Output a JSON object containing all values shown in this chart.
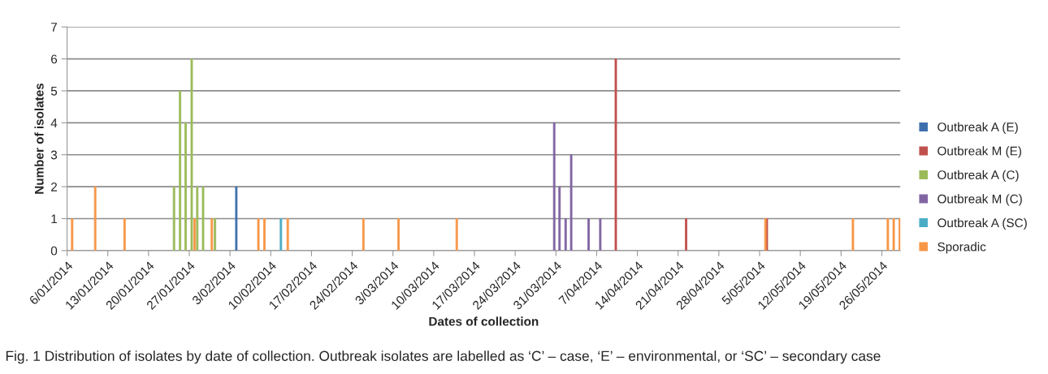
{
  "chart_data": {
    "type": "bar",
    "xlabel": "Dates of collection",
    "ylabel": "Number of isolates",
    "annotations": [
      "Fig. 1 Distribution of isolates by date of collection. Outbreak isolates are labelled as ‘C’ – case, ‘E’ – environmental, or ‘SC’ – secondary case"
    ],
    "xlim": [
      "2014-01-06",
      "2014-05-29T04:00"
    ],
    "xticks": [
      {
        "value": "2014-01-06",
        "label": "6/01/2014"
      },
      {
        "value": "2014-01-13",
        "label": "13/01/2014"
      },
      {
        "value": "2014-01-20",
        "label": "20/01/2014"
      },
      {
        "value": "2014-01-27",
        "label": "27/01/2014"
      },
      {
        "value": "2014-02-03",
        "label": "3/02/2014"
      },
      {
        "value": "2014-02-10",
        "label": "10/02/2014"
      },
      {
        "value": "2014-02-17",
        "label": "17/02/2014"
      },
      {
        "value": "2014-02-24",
        "label": "24/02/2014"
      },
      {
        "value": "2014-03-03",
        "label": "3/03/2014"
      },
      {
        "value": "2014-03-10",
        "label": "10/03/2014"
      },
      {
        "value": "2014-03-17",
        "label": "17/03/2014"
      },
      {
        "value": "2014-03-24",
        "label": "24/03/2014"
      },
      {
        "value": "2014-03-31",
        "label": "31/03/2014"
      },
      {
        "value": "2014-04-07",
        "label": "7/04/2014"
      },
      {
        "value": "2014-04-14",
        "label": "14/04/2014"
      },
      {
        "value": "2014-04-21",
        "label": "21/04/2014"
      },
      {
        "value": "2014-04-28",
        "label": "28/04/2014"
      },
      {
        "value": "2014-05-05",
        "label": "5/05/2014"
      },
      {
        "value": "2014-05-12",
        "label": "12/05/2014"
      },
      {
        "value": "2014-05-19",
        "label": "19/05/2014"
      },
      {
        "value": "2014-05-26",
        "label": "26/05/2014"
      }
    ],
    "ylim": [
      0,
      7
    ],
    "yticks": [
      0,
      1,
      2,
      3,
      4,
      5,
      6,
      7
    ],
    "grid": "y",
    "legend": "right",
    "series": [
      {
        "name": "Outbreak A (E)",
        "color": "#3d6faf",
        "x": [
          "2014-02-04T02:00"
        ],
        "values": [
          2
        ]
      },
      {
        "name": "Outbreak M (E)",
        "color": "#c0504d",
        "x": [
          "2014-04-10T07:00",
          "2014-04-22T09:00",
          "2014-05-06T06:00"
        ],
        "values": [
          6,
          1,
          1
        ]
      },
      {
        "name": "Outbreak A (C)",
        "color": "#9bbb59",
        "x": [
          "2014-01-24T09:00",
          "2014-01-25T10:00",
          "2014-01-26T09:00",
          "2014-01-27T10:00",
          "2014-01-28T09:00",
          "2014-01-29T09:00",
          "2014-01-31T10:00"
        ],
        "values": [
          2,
          5,
          4,
          6,
          2,
          2,
          1
        ]
      },
      {
        "name": "Outbreak M (C)",
        "color": "#8064a2",
        "x": [
          "2014-03-30T17:00",
          "2014-03-31T15:00",
          "2014-04-01T16:00",
          "2014-04-02T15:00",
          "2014-04-05T15:00",
          "2014-04-07T15:00"
        ],
        "values": [
          4,
          2,
          1,
          3,
          1,
          1
        ]
      },
      {
        "name": "Outbreak A (SC)",
        "color": "#4bacc6",
        "x": [
          "2014-02-11T18:00"
        ],
        "values": [
          1
        ]
      },
      {
        "name": "Sporadic",
        "color": "#f79646",
        "x": [
          "2014-01-06T21:00",
          "2014-01-10T20:00",
          "2014-01-15T21:00",
          "2014-01-27T22:00",
          "2014-01-30T21:00",
          "2014-02-07T21:00",
          "2014-02-08T22:00",
          "2014-02-12T22:00",
          "2014-02-25T22:00",
          "2014-03-03T23:00",
          "2014-03-13T23:00",
          "2014-05-06T00:00",
          "2014-05-21T01:00",
          "2014-05-27T01:00",
          "2014-05-28T01:00",
          "2014-05-29T02:00"
        ],
        "values": [
          1,
          2,
          1,
          1,
          1,
          1,
          1,
          1,
          1,
          1,
          1,
          1,
          1,
          1,
          1,
          1
        ]
      }
    ]
  }
}
